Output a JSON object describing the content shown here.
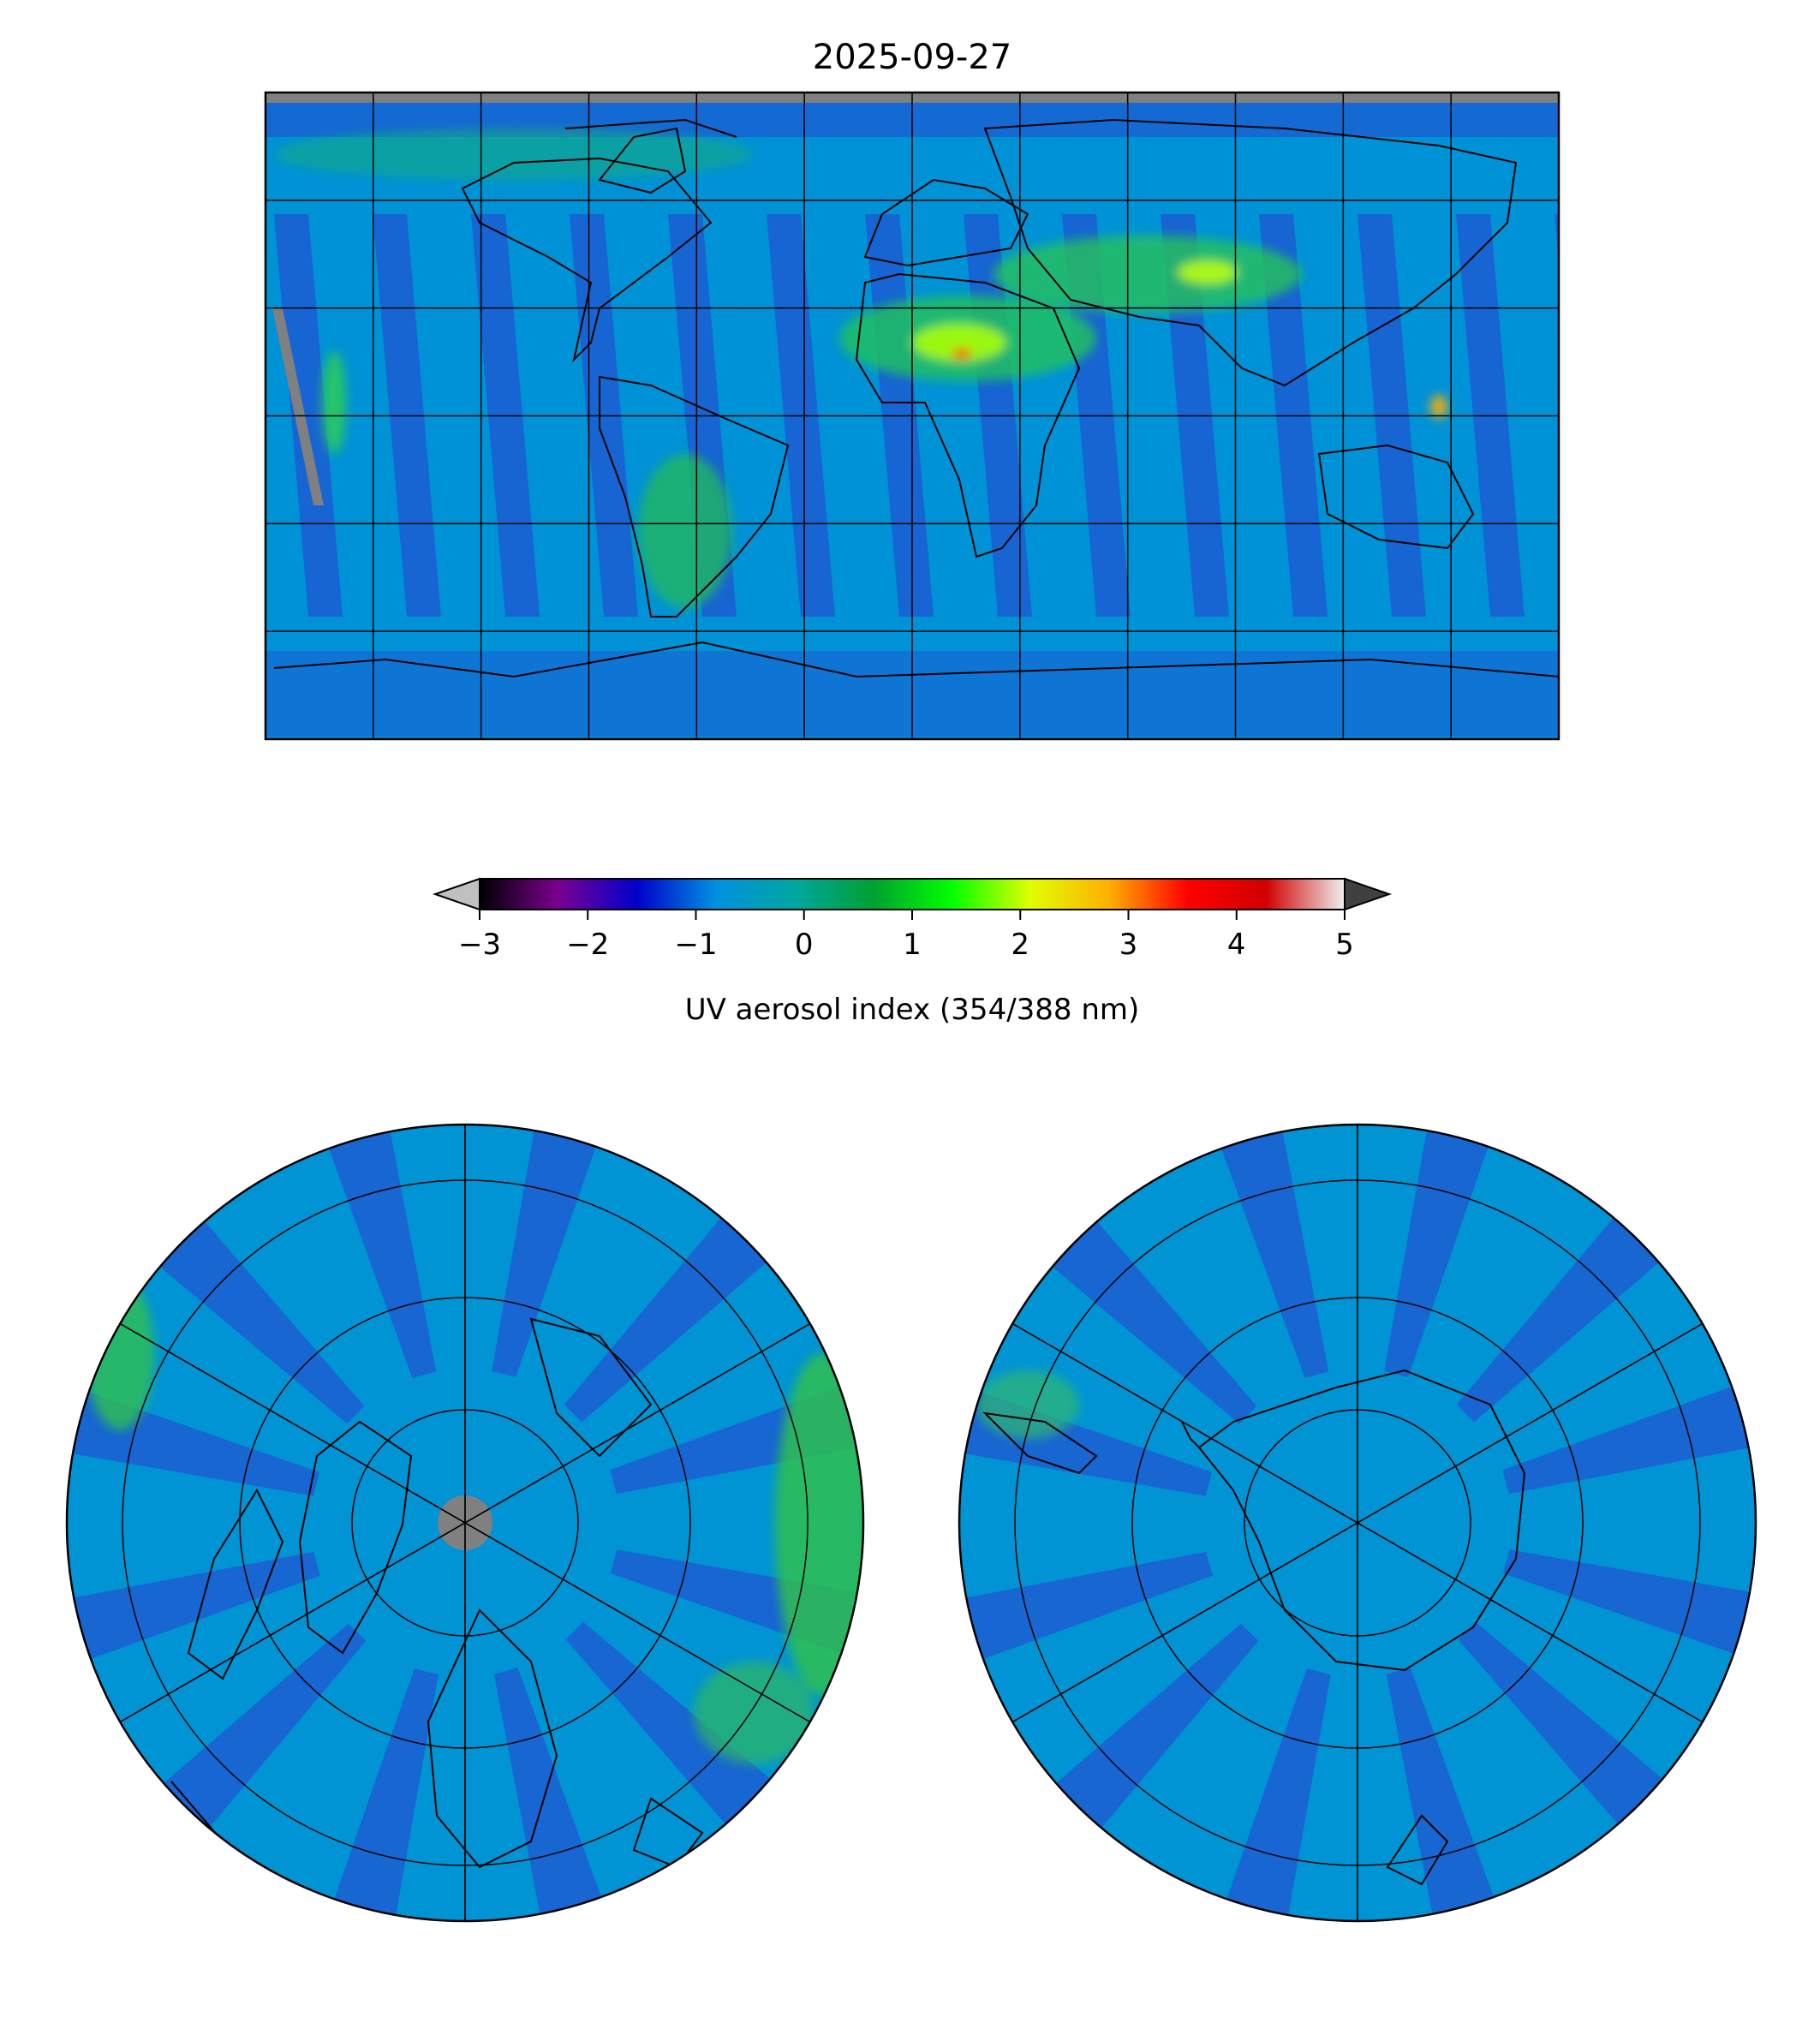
{
  "title": "2025-09-27",
  "colorbar": {
    "label": "UV aerosol index (354/388 nm)",
    "ticks": [
      "−3",
      "−2",
      "−1",
      "0",
      "1",
      "2",
      "3",
      "4",
      "5"
    ],
    "range": [
      -3,
      5
    ],
    "extend": "both",
    "stops": [
      "#000000",
      "#7a0090",
      "#0000cc",
      "#0090e0",
      "#00a6a0",
      "#00a030",
      "#00ff00",
      "#e0ff00",
      "#ffb000",
      "#ff0000",
      "#d00000",
      "#f0f0f0"
    ],
    "under_color": "#c0c0c0",
    "over_color": "#404040"
  },
  "colors": {
    "background_field": "#0090d8",
    "low_swath": "#2a3fd0",
    "enhanced": "#22c05a",
    "high": "#a8ff00",
    "missing": "#808080",
    "coastline": "#000000"
  },
  "maps": [
    {
      "name": "global",
      "projection": "plate-carree"
    },
    {
      "name": "north-polar",
      "projection": "north-polar-stereographic"
    },
    {
      "name": "south-polar",
      "projection": "south-polar-stereographic"
    }
  ]
}
